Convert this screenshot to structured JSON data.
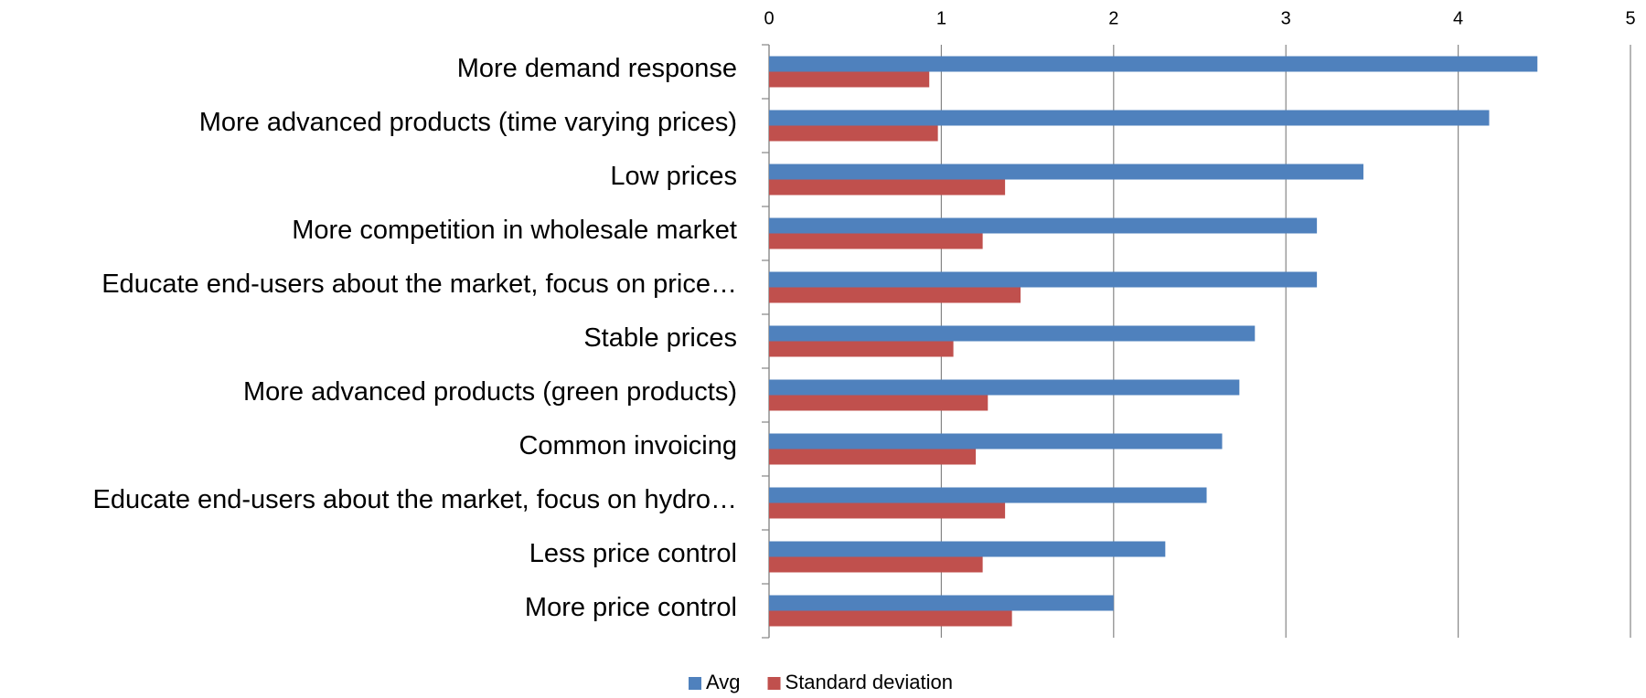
{
  "chart_data": {
    "type": "barh",
    "categories": [
      "More demand response",
      "More advanced products (time varying prices)",
      "Low prices",
      "More competition in wholesale market",
      "Educate end-users about the market, focus on price…",
      "Stable prices",
      "More advanced products (green products)",
      "Common invoicing",
      "Educate end-users about the market, focus on hydro…",
      "Less price control",
      "More price control"
    ],
    "series": [
      {
        "name": "Avg",
        "color": "#4f81bd",
        "values": [
          4.46,
          4.18,
          3.45,
          3.18,
          3.18,
          2.82,
          2.73,
          2.63,
          2.54,
          2.3,
          2.0
        ]
      },
      {
        "name": "Standard deviation",
        "color": "#c0504d",
        "values": [
          0.93,
          0.98,
          1.37,
          1.24,
          1.46,
          1.07,
          1.27,
          1.2,
          1.37,
          1.24,
          1.41
        ]
      }
    ],
    "xlim": [
      0,
      5
    ],
    "xticks": [
      0,
      1,
      2,
      3,
      4,
      5
    ],
    "grid": true,
    "legend": "bottom"
  }
}
